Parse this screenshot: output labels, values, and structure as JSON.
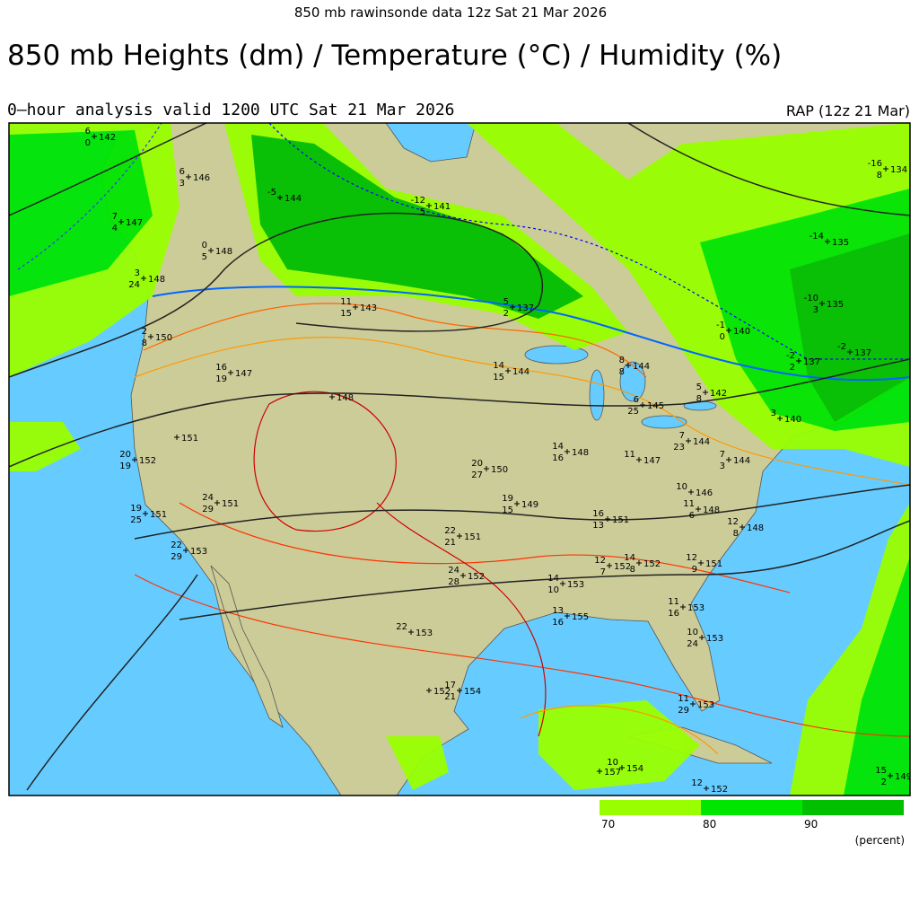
{
  "header": "850 mb  rawinsonde data 12z Sat 21 Mar 2026",
  "title": "850 mb Heights (dm) / Temperature (°C) / Humidity (%)",
  "subtitle": "0–hour analysis valid 1200 UTC Sat 21 Mar 2026",
  "model": "RAP (12z 21 Mar)",
  "legend": {
    "ticks": [
      70,
      80,
      90
    ],
    "colors": [
      "#99ff00",
      "#00e600",
      "#00c000"
    ],
    "unit": "(percent)"
  },
  "stations": [
    {
      "temp": 6,
      "dew": 0,
      "height": 142
    },
    {
      "temp": 6,
      "dew": 3,
      "height": 146
    },
    {
      "temp": 7,
      "dew": 4,
      "height": 147
    },
    {
      "temp": 0,
      "dew": 5,
      "height": 148
    },
    {
      "temp": 3,
      "dew": 24,
      "height": 148
    },
    {
      "temp": 2,
      "dew": 8,
      "height": 150
    },
    {
      "temp": -5,
      "height": 144
    },
    {
      "temp": -12,
      "dew": 5,
      "height": 141
    },
    {
      "temp": 11,
      "dew": 15,
      "height": 143
    },
    {
      "temp": 5,
      "dew": 2,
      "height": 137
    },
    {
      "temp": 16,
      "dew": 19,
      "height": 147
    },
    {
      "height": 148
    },
    {
      "temp": 14,
      "dew": 15,
      "height": 144
    },
    {
      "temp": 8,
      "dew": 8,
      "height": 144
    },
    {
      "temp": 6,
      "dew": 25,
      "height": 145
    },
    {
      "temp": 5,
      "dew": 8,
      "height": 142
    },
    {
      "height": 151
    },
    {
      "temp": 20,
      "dew": 19,
      "height": 152
    },
    {
      "temp": 20,
      "dew": 27,
      "height": 150
    },
    {
      "temp": 14,
      "dew": 16,
      "height": 148
    },
    {
      "temp": 11,
      "height": 147
    },
    {
      "temp": 7,
      "dew": 23,
      "height": 144
    },
    {
      "temp": 7,
      "dew": 3,
      "height": 144
    },
    {
      "temp": 10,
      "height": 146
    },
    {
      "temp": 11,
      "dew": 6,
      "height": 148
    },
    {
      "temp": 12,
      "dew": 8,
      "height": 148
    },
    {
      "temp": 24,
      "dew": 29,
      "height": 151
    },
    {
      "temp": 19,
      "dew": 25,
      "height": 151
    },
    {
      "temp": 19,
      "dew": 15,
      "height": 149
    },
    {
      "temp": 16,
      "dew": 13,
      "height": 151
    },
    {
      "temp": 22,
      "dew": 29,
      "height": 153
    },
    {
      "temp": 22,
      "dew": 21,
      "height": 151
    },
    {
      "temp": 24,
      "dew": 28,
      "height": 152
    },
    {
      "temp": 14,
      "dew": 10,
      "height": 153
    },
    {
      "temp": 12,
      "dew": 7,
      "height": 152
    },
    {
      "temp": 14,
      "dew": 8,
      "height": 152
    },
    {
      "temp": 12,
      "dew": 9,
      "height": 151
    },
    {
      "temp": 13,
      "dew": 16,
      "height": 155
    },
    {
      "temp": 11,
      "dew": 16,
      "height": 153
    },
    {
      "temp": 10,
      "dew": 24,
      "height": 153
    },
    {
      "temp": 22,
      "height": 153
    },
    {
      "height": 152
    },
    {
      "temp": 17,
      "dew": 21,
      "height": 154
    },
    {
      "temp": 11,
      "dew": 29,
      "height": 153
    },
    {
      "temp": 10,
      "height": 154
    },
    {
      "height": 157
    },
    {
      "temp": 12,
      "height": 152
    },
    {
      "temp": -16,
      "dew": 8,
      "height": 134
    },
    {
      "temp": -14,
      "height": 135
    },
    {
      "temp": -10,
      "dew": 3,
      "height": 135
    },
    {
      "temp": -1,
      "dew": 0,
      "height": 140
    },
    {
      "temp": -2,
      "height": 137
    },
    {
      "temp": -2,
      "dew": 2,
      "height": 137
    },
    {
      "temp": 3,
      "height": 140
    },
    {
      "temp": 15,
      "dew": 2,
      "height": 149
    }
  ]
}
